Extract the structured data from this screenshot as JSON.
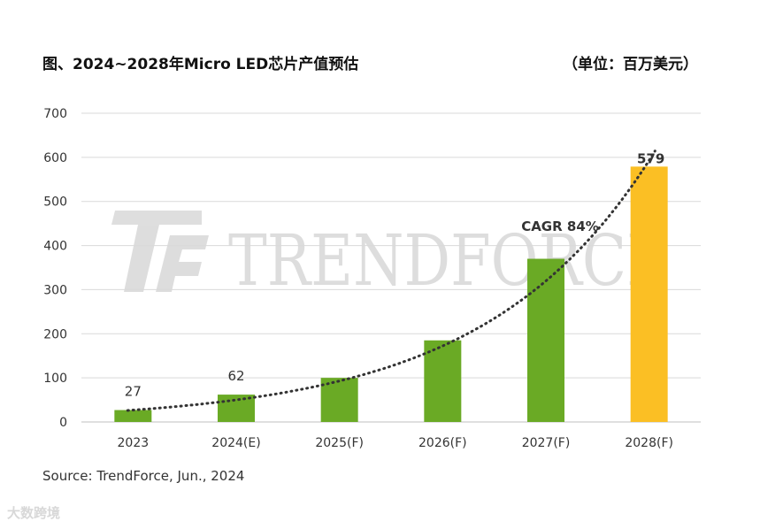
{
  "header": {
    "title": "图、2024~2028年Micro LED芯片产值预估",
    "unit": "（单位：百万美元）"
  },
  "watermark": {
    "text": "TRENDFORCE"
  },
  "footer": {
    "source": "Source: TrendForce, Jun., 2024",
    "corner_logo": "大数跨境"
  },
  "chart_data": {
    "type": "bar",
    "title": "图、2024~2028年Micro LED芯片产值预估",
    "categories": [
      "2023",
      "2024(E)",
      "2025(F)",
      "2026(F)",
      "2027(F)",
      "2028(F)"
    ],
    "values": [
      27,
      62,
      100,
      185,
      370,
      579
    ],
    "data_labels": [
      "27",
      "62",
      "",
      "",
      "",
      "579"
    ],
    "ylim": [
      0,
      700
    ],
    "yticks": [
      0,
      100,
      200,
      300,
      400,
      500,
      600,
      700
    ],
    "grid": true,
    "bar_colors": [
      "#6aaa25",
      "#6aaa25",
      "#6aaa25",
      "#6aaa25",
      "#6aaa25",
      "#fbbf24"
    ],
    "trendline": {
      "style": "dotted",
      "label": "CAGR 84%"
    }
  }
}
